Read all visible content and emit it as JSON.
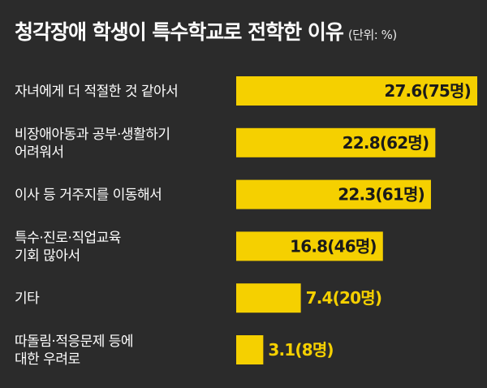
{
  "chart_data": {
    "type": "bar",
    "orientation": "horizontal",
    "title": "청각장애 학생이 특수학교로 전학한 이유",
    "unit": "(단위: %)",
    "categories": [
      [
        "자녀에게 더 적절한 것 같아서"
      ],
      [
        "비장애아동과 공부·생활하기",
        "어려워서"
      ],
      [
        "이사 등 거주지를 이동해서"
      ],
      [
        "특수·진로·직업교육",
        "기회 많아서"
      ],
      [
        "기타"
      ],
      [
        "따돌림·적응문제 등에",
        "대한 우려로"
      ]
    ],
    "values": [
      27.6,
      22.8,
      22.3,
      16.8,
      7.4,
      3.1
    ],
    "value_labels": [
      "27.6(75명)",
      "22.8(62명)",
      "22.3(61명)",
      "16.8(46명)",
      "7.4(20명)",
      "3.1(8명)"
    ],
    "xlim": [
      0,
      27.6
    ],
    "grid": false,
    "legend": "none"
  },
  "colors": {
    "background": "#2b2b2b",
    "bar": "#f5d000",
    "text": "#ffffff",
    "value_text_inside": "#1a1a1a",
    "value_text_outside": "#f5d000"
  }
}
